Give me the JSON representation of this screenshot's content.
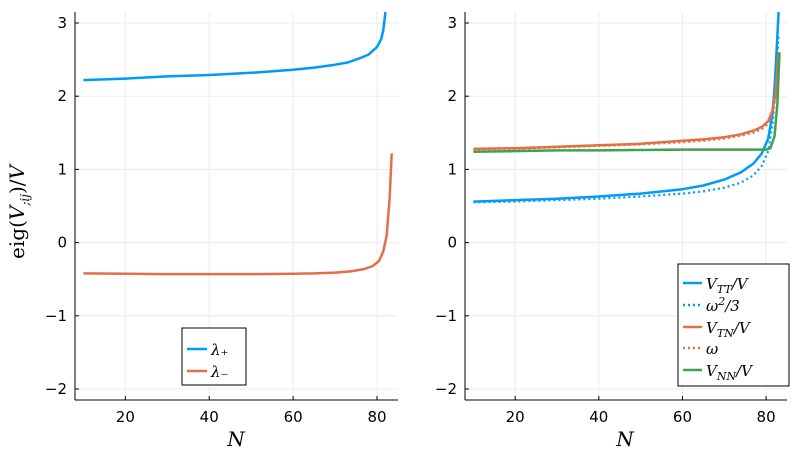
{
  "colors": {
    "blue": "#009af9",
    "orange": "#e26f46",
    "green": "#3da44d",
    "grid": "#ececec",
    "axis": "#000000"
  },
  "chart_data": [
    {
      "type": "line",
      "xlabel": "N",
      "ylabel": "eig(V_{;ij})/V",
      "xlim": [
        8,
        85
      ],
      "ylim": [
        -2.15,
        3.15
      ],
      "xticks": [
        20,
        40,
        60,
        80
      ],
      "yticks": [
        -2,
        -1,
        0,
        1,
        2,
        3
      ],
      "grid": true,
      "legend_position": "bottom-center",
      "series": [
        {
          "name": "λ₊",
          "color": "#009af9",
          "style": "solid",
          "x": [
            10,
            20,
            30,
            40,
            50,
            60,
            65,
            70,
            73,
            76,
            78,
            80,
            81,
            81.5,
            82
          ],
          "y": [
            2.22,
            2.24,
            2.27,
            2.29,
            2.32,
            2.36,
            2.39,
            2.43,
            2.46,
            2.52,
            2.57,
            2.67,
            2.78,
            2.9,
            3.15
          ]
        },
        {
          "name": "λ₋",
          "color": "#e26f46",
          "style": "solid",
          "x": [
            10,
            20,
            30,
            40,
            50,
            60,
            65,
            70,
            74,
            77,
            79,
            80.5,
            81.5,
            82.3,
            83,
            83.5
          ],
          "y": [
            -0.42,
            -0.425,
            -0.43,
            -0.43,
            -0.43,
            -0.425,
            -0.42,
            -0.41,
            -0.39,
            -0.36,
            -0.32,
            -0.25,
            -0.12,
            0.1,
            0.6,
            1.22
          ]
        }
      ]
    },
    {
      "type": "line",
      "xlabel": "N",
      "xlim": [
        8,
        85
      ],
      "ylim": [
        -2.15,
        3.15
      ],
      "xticks": [
        20,
        40,
        60,
        80
      ],
      "yticks": [
        -2,
        -1,
        0,
        1,
        2,
        3
      ],
      "grid": true,
      "legend_position": "bottom-right",
      "series": [
        {
          "name": "V_TT/V",
          "color": "#009af9",
          "style": "solid",
          "x": [
            10,
            20,
            30,
            40,
            50,
            60,
            65,
            70,
            74,
            77,
            79,
            80.5,
            81.5,
            82,
            82.5,
            83
          ],
          "y": [
            0.56,
            0.58,
            0.6,
            0.63,
            0.67,
            0.73,
            0.78,
            0.86,
            0.96,
            1.08,
            1.22,
            1.42,
            1.75,
            2.1,
            2.6,
            3.15
          ]
        },
        {
          "name": "ω²/3",
          "color": "#009af9",
          "style": "dotted",
          "x": [
            10,
            20,
            30,
            40,
            50,
            60,
            65,
            70,
            74,
            77,
            79,
            80.5,
            81.5,
            82.3,
            83
          ],
          "y": [
            0.55,
            0.56,
            0.58,
            0.6,
            0.63,
            0.67,
            0.7,
            0.75,
            0.82,
            0.92,
            1.05,
            1.25,
            1.6,
            2.1,
            2.85
          ]
        },
        {
          "name": "V_TN/V",
          "color": "#e26f46",
          "style": "solid",
          "x": [
            10,
            20,
            30,
            40,
            50,
            60,
            65,
            70,
            74,
            77,
            79,
            80.5,
            81.5,
            82.3,
            83
          ],
          "y": [
            1.28,
            1.29,
            1.31,
            1.33,
            1.35,
            1.39,
            1.41,
            1.44,
            1.48,
            1.53,
            1.58,
            1.66,
            1.8,
            2.05,
            2.6
          ]
        },
        {
          "name": "ω",
          "color": "#e26f46",
          "style": "dotted",
          "x": [
            10,
            20,
            30,
            40,
            50,
            60,
            65,
            70,
            74,
            77,
            79,
            80.5,
            81.5,
            82.3,
            83
          ],
          "y": [
            1.27,
            1.28,
            1.3,
            1.32,
            1.34,
            1.37,
            1.39,
            1.42,
            1.46,
            1.5,
            1.55,
            1.62,
            1.75,
            2.0,
            2.5
          ]
        },
        {
          "name": "V_NN/V",
          "color": "#3da44d",
          "style": "solid",
          "x": [
            10,
            20,
            30,
            40,
            50,
            60,
            70,
            75,
            78,
            80,
            81,
            82,
            82.7,
            83.2
          ],
          "y": [
            1.24,
            1.25,
            1.26,
            1.26,
            1.265,
            1.27,
            1.27,
            1.27,
            1.27,
            1.27,
            1.29,
            1.45,
            1.9,
            2.6
          ]
        }
      ]
    }
  ]
}
